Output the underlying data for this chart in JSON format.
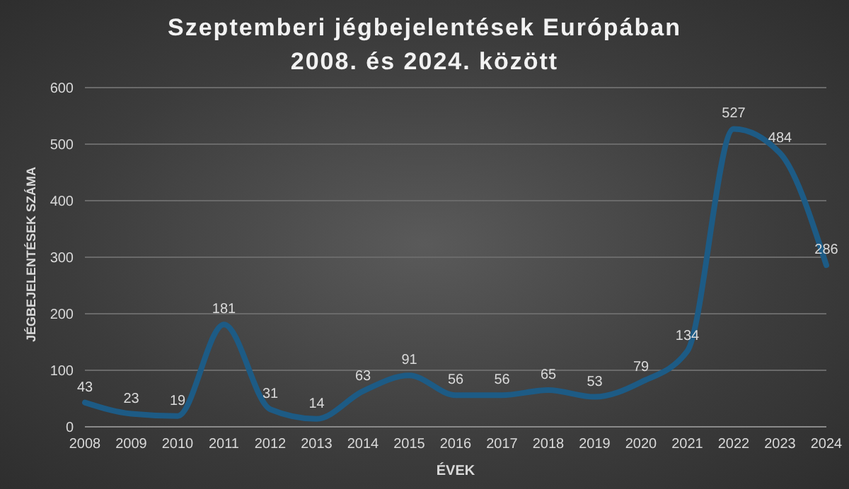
{
  "chart_data": {
    "type": "line",
    "title": "Szeptemberi jégbejelentések Európában\n2008. és 2024. között",
    "xlabel": "ÉVEK",
    "ylabel": "JÉGBEJELENTÉSEK SZÁMA",
    "categories": [
      "2008",
      "2009",
      "2010",
      "2011",
      "2012",
      "2013",
      "2014",
      "2015",
      "2016",
      "2017",
      "2018",
      "2019",
      "2020",
      "2021",
      "2022",
      "2023",
      "2024"
    ],
    "series": [
      {
        "color": "#1d5b85",
        "values": [
          43,
          23,
          19,
          181,
          31,
          14,
          63,
          91,
          56,
          56,
          65,
          53,
          79,
          134,
          527,
          484,
          286
        ]
      }
    ],
    "ylim": [
      0,
      600
    ],
    "yticks": [
      0,
      100,
      200,
      300,
      400,
      500,
      600
    ],
    "grid": "y",
    "legend": false,
    "marker": "none",
    "line_style": "solid",
    "data_labels": true
  }
}
